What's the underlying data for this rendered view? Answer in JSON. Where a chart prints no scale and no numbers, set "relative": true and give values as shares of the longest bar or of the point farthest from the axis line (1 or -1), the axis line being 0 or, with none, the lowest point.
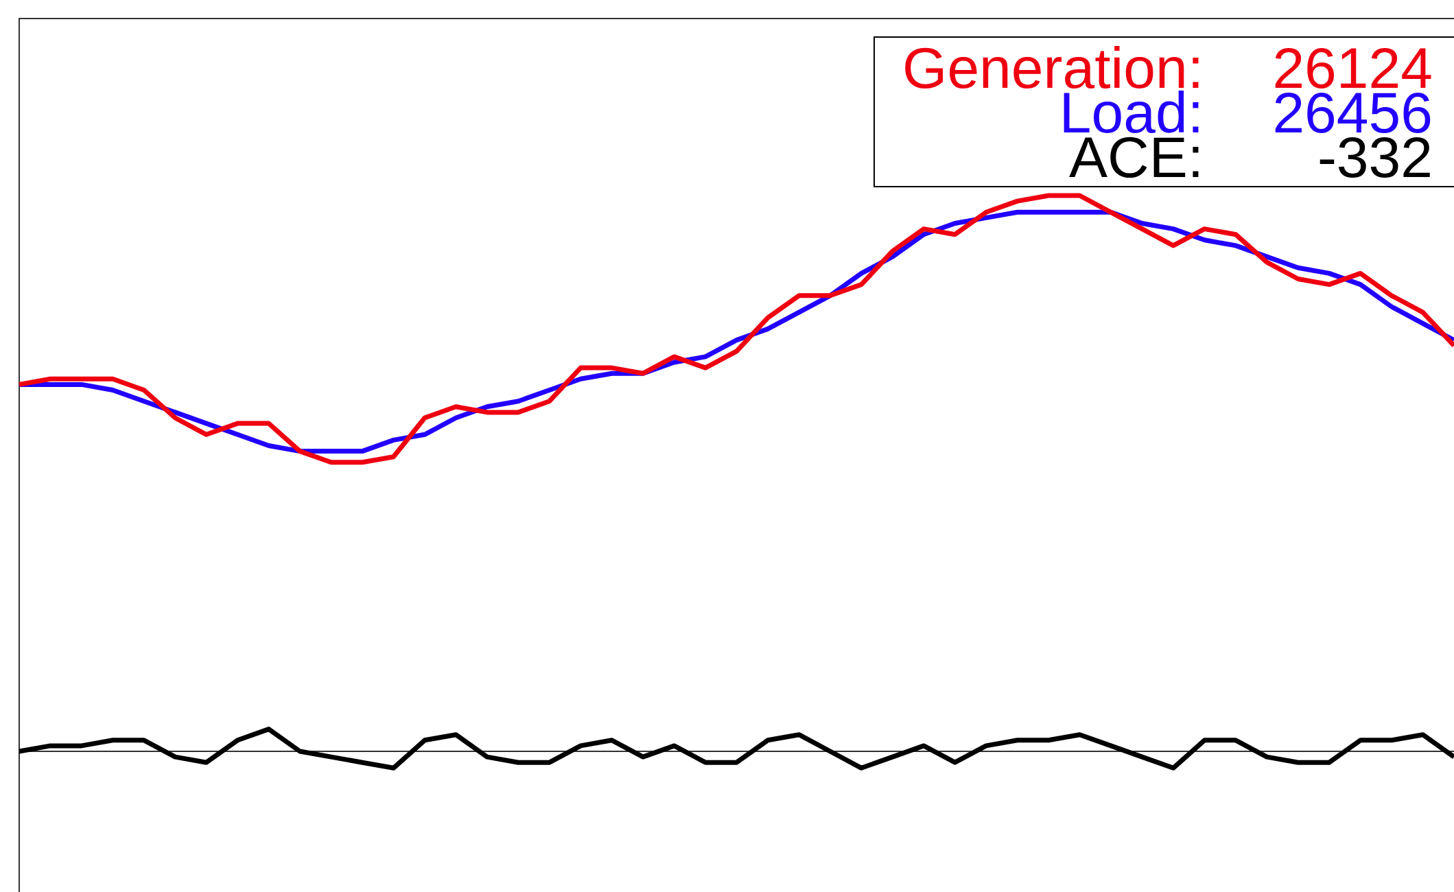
{
  "chart_data": {
    "type": "line",
    "relative": true,
    "legend": "top right",
    "line_style": "solid",
    "marker": "none",
    "grid": false,
    "categories": [
      null,
      null,
      null,
      null,
      null,
      null,
      null,
      null,
      null,
      null,
      null,
      null,
      null,
      null,
      null,
      null,
      null,
      null,
      null,
      null,
      null,
      null,
      null,
      null,
      null,
      null,
      null,
      null,
      null,
      null,
      null,
      null,
      null,
      null,
      null,
      null,
      null,
      null,
      null,
      null,
      null,
      null,
      null,
      null,
      null,
      null,
      null
    ],
    "series": [
      {
        "name": "Load:",
        "color": "#2200ff",
        "values": [
          0.66,
          0.66,
          0.66,
          0.65,
          0.63,
          0.61,
          0.59,
          0.57,
          0.55,
          0.54,
          0.54,
          0.54,
          0.56,
          0.57,
          0.6,
          0.62,
          0.63,
          0.65,
          0.67,
          0.68,
          0.68,
          0.7,
          0.71,
          0.74,
          0.76,
          0.79,
          0.82,
          0.86,
          0.89,
          0.93,
          0.95,
          0.96,
          0.97,
          0.97,
          0.97,
          0.97,
          0.95,
          0.94,
          0.92,
          0.91,
          0.89,
          0.87,
          0.86,
          0.84,
          0.8,
          0.77,
          0.74
        ]
      },
      {
        "name": "Generation:",
        "color": "#ee0011",
        "values": [
          0.66,
          0.67,
          0.67,
          0.67,
          0.65,
          0.6,
          0.57,
          0.59,
          0.59,
          0.54,
          0.52,
          0.52,
          0.53,
          0.6,
          0.62,
          0.61,
          0.61,
          0.63,
          0.69,
          0.69,
          0.68,
          0.71,
          0.69,
          0.72,
          0.78,
          0.82,
          0.82,
          0.84,
          0.9,
          0.94,
          0.93,
          0.97,
          0.99,
          1.0,
          1.0,
          0.97,
          0.94,
          0.91,
          0.94,
          0.93,
          0.88,
          0.85,
          0.84,
          0.86,
          0.82,
          0.79,
          0.73
        ]
      },
      {
        "name": "ACE:",
        "color": "#000000",
        "values": [
          0,
          0.01,
          0.01,
          0.02,
          0.02,
          -0.01,
          -0.02,
          0.02,
          0.04,
          0,
          -0.01,
          -0.02,
          -0.03,
          0.02,
          0.03,
          -0.01,
          -0.02,
          -0.02,
          0.01,
          0.02,
          -0.01,
          0.01,
          -0.02,
          -0.02,
          0.02,
          0.03,
          0,
          -0.03,
          -0.01,
          0.01,
          -0.02,
          0.01,
          0.02,
          0.02,
          0.03,
          0.01,
          -0.01,
          -0.03,
          0.02,
          0.02,
          -0.01,
          -0.02,
          -0.02,
          0.02,
          0.02,
          0.03,
          -0.01
        ]
      }
    ],
    "annotations": [
      "26456",
      "26124",
      "-332"
    ]
  }
}
